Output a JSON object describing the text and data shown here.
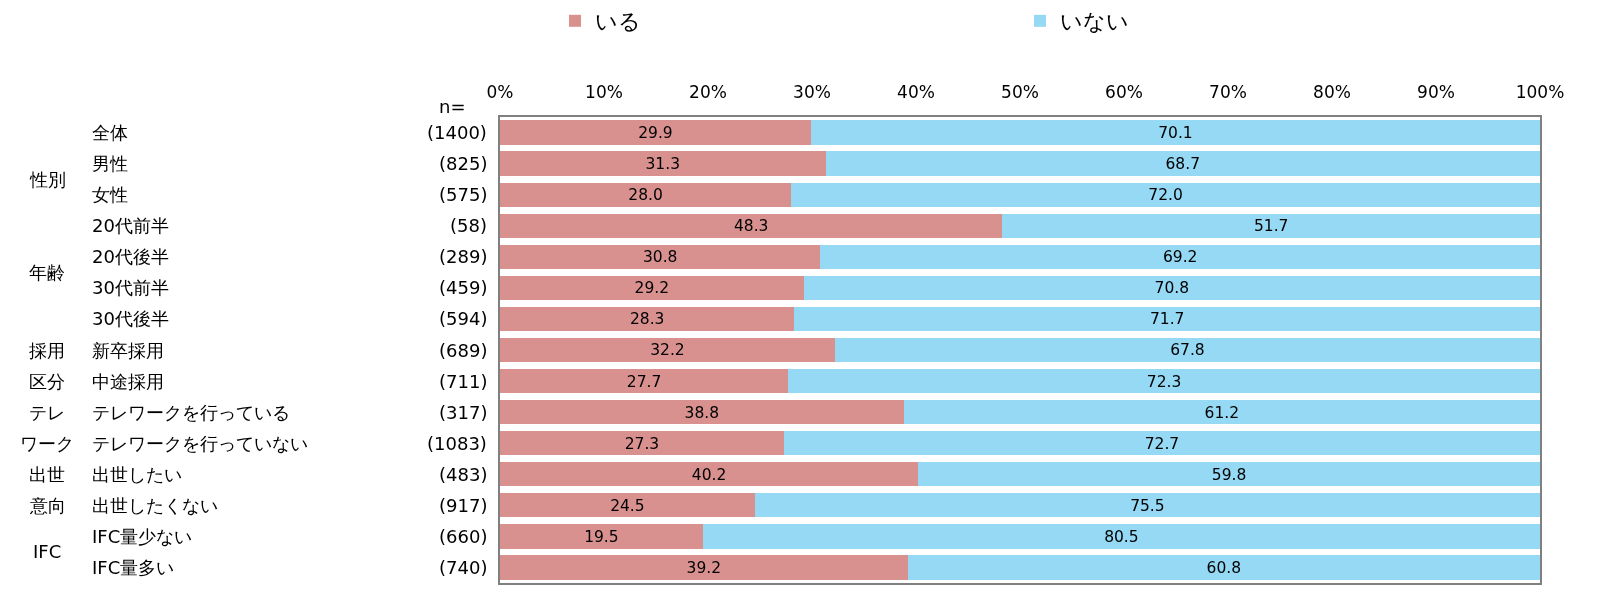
{
  "chart_data": {
    "type": "bar",
    "orientation": "horizontal",
    "stacked": true,
    "legend": "top",
    "categories": [
      "全体",
      "男性",
      "女性",
      "20代前半",
      "20代後半",
      "30代前半",
      "30代後半",
      "新卒採用",
      "中途採用",
      "テレワークを行っている",
      "テレワークを行っていない",
      "出世したい",
      "出世したくない",
      "IFC量少ない",
      "IFC量多い"
    ],
    "series": [
      {
        "name": "いる",
        "color": "#d99190",
        "values": [
          29.9,
          31.3,
          28.0,
          48.3,
          30.8,
          29.2,
          28.3,
          32.2,
          27.7,
          38.8,
          27.3,
          40.2,
          24.5,
          19.5,
          39.2
        ],
        "value_labels": [
          "29.9",
          "31.3",
          "28.0",
          "48.3",
          "30.8",
          "29.2",
          "28.3",
          "32.2",
          "27.7",
          "38.8",
          "27.3",
          "40.2",
          "24.5",
          "19.5",
          "39.2"
        ]
      },
      {
        "name": "いない",
        "color": "#95d9f5",
        "values": [
          70.1,
          68.7,
          72.0,
          51.7,
          69.2,
          70.8,
          71.7,
          67.8,
          72.3,
          61.2,
          72.7,
          59.8,
          75.5,
          80.5,
          60.8
        ],
        "value_labels": [
          "70.1",
          "68.7",
          "72.0",
          "51.7",
          "69.2",
          "70.8",
          "71.7",
          "67.8",
          "72.3",
          "61.2",
          "72.7",
          "59.8",
          "75.5",
          "80.5",
          "60.8"
        ]
      }
    ],
    "xlim": [
      0,
      100
    ],
    "xticks": [
      {
        "value": 0,
        "label": "0%"
      },
      {
        "value": 10,
        "label": "10%"
      },
      {
        "value": 20,
        "label": "20%"
      },
      {
        "value": 30,
        "label": "30%"
      },
      {
        "value": 40,
        "label": "40%"
      },
      {
        "value": 50,
        "label": "50%"
      },
      {
        "value": 60,
        "label": "60%"
      },
      {
        "value": 70,
        "label": "70%"
      },
      {
        "value": 80,
        "label": "80%"
      },
      {
        "value": 90,
        "label": "90%"
      },
      {
        "value": 100,
        "label": "100%"
      }
    ],
    "annotations": [
      "n=",
      "(1400)",
      "(825)",
      "(575)",
      "(58)",
      "(289)",
      "(459)",
      "(594)",
      "(689)",
      "(711)",
      "(317)",
      "(1083)",
      "(483)",
      "(917)",
      "(660)",
      "(740)",
      "性別",
      "年齢",
      "採用",
      "区分",
      "テレ",
      "ワーク",
      "出世",
      "意向",
      "IFC"
    ]
  }
}
